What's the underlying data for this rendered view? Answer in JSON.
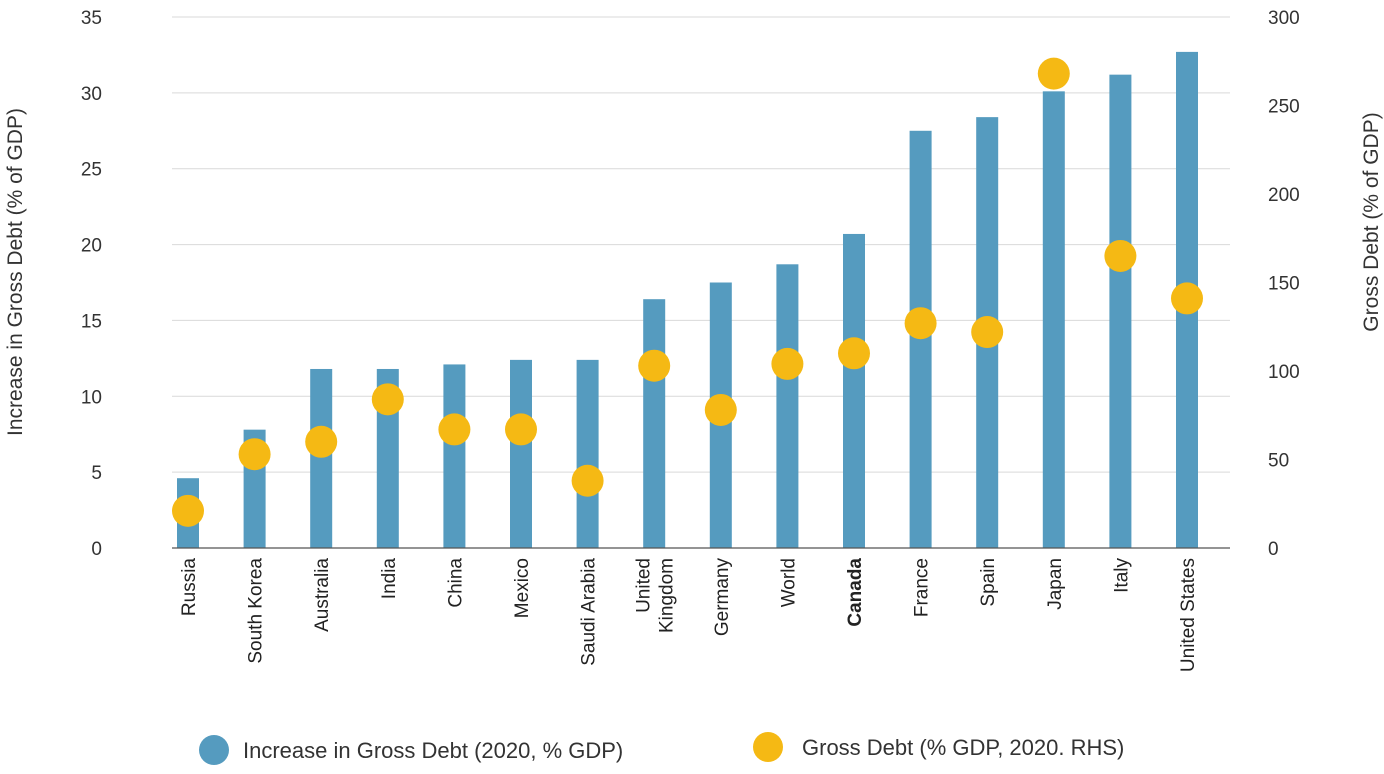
{
  "chart_data": {
    "type": "bar",
    "categories": [
      "Russia",
      "South Korea",
      "Australia",
      "India",
      "China",
      "Mexico",
      "Saudi Arabia",
      "United Kingdom",
      "Germany",
      "World",
      "Canada",
      "France",
      "Spain",
      "Japan",
      "Italy",
      "United States"
    ],
    "highlight_category": "Canada",
    "series": [
      {
        "name": "Increase in Gross Debt (2020, % GDP)",
        "type": "bar",
        "axis": "left",
        "color": "#559bbf",
        "values": [
          4.6,
          7.8,
          11.8,
          11.8,
          12.1,
          12.4,
          12.4,
          16.4,
          17.5,
          18.7,
          20.7,
          27.5,
          28.4,
          30.1,
          31.2,
          32.7
        ]
      },
      {
        "name": "Gross Debt (% GDP, 2020. RHS)",
        "type": "scatter",
        "axis": "right",
        "color": "#f5b914",
        "values": [
          21,
          53,
          60,
          84,
          67,
          67,
          38,
          103,
          78,
          104,
          110,
          127,
          122,
          268,
          165,
          141
        ]
      }
    ],
    "yaxis_left": {
      "label": "Increase in Gross Debt (% of GDP)",
      "ylim": [
        0,
        35
      ],
      "ticks": [
        "0",
        "5",
        "10",
        "15",
        "20",
        "25",
        "30",
        "35"
      ]
    },
    "yaxis_right": {
      "label": "Gross Debt (% of GDP)",
      "ylim": [
        0,
        300
      ],
      "ticks": [
        "0",
        "50",
        "100",
        "150",
        "200",
        "250",
        "300"
      ]
    },
    "grid": true,
    "legend_position": "bottom"
  }
}
